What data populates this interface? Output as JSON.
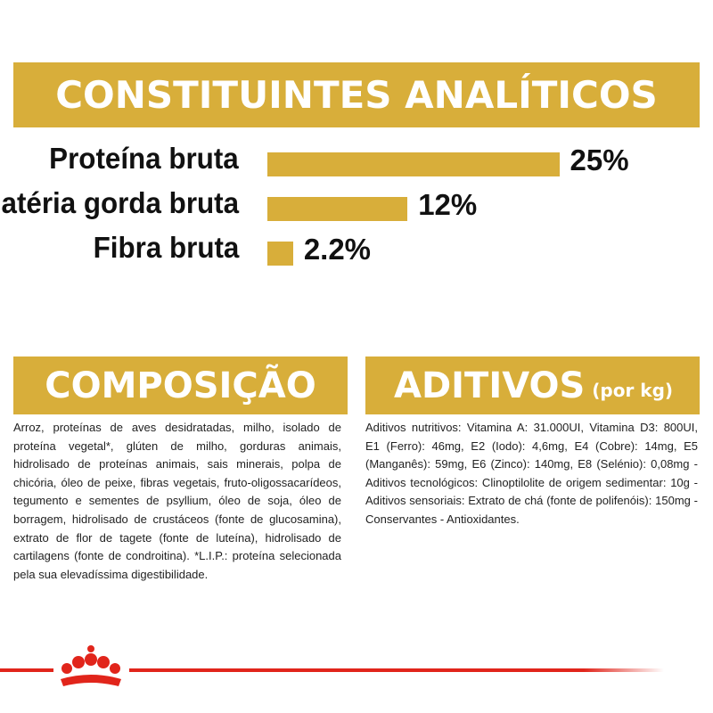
{
  "analytics": {
    "title": "CONSTITUINTES ANALÍTICOS",
    "items": [
      {
        "label": "Proteína bruta",
        "value": 25,
        "value_label": "25%"
      },
      {
        "label": "Matéria gorda bruta",
        "value": 12,
        "value_label": "12%"
      },
      {
        "label": "Fibra bruta",
        "value": 2.2,
        "value_label": "2.2%"
      }
    ]
  },
  "composition": {
    "title": "COMPOSIÇÃO",
    "text": "Arroz, proteínas de aves desidratadas, milho, isolado de proteína vegetal*, glúten de milho, gorduras animais, hidrolisado de proteínas animais, sais minerais, polpa de chicória, óleo de peixe, fibras vegetais, fruto-oligossacarídeos, tegumento e sementes de psyllium, óleo de soja, óleo de borragem, hidrolisado de crustáceos (fonte de glucosamina), extrato de flor de tagete (fonte de luteína), hidrolisado de cartilagens (fonte de condroitina). *L.I.P.: proteína selecionada pela sua elevadíssima digestibilidade."
  },
  "additives": {
    "title": "ADITIVOS",
    "subtitle": "(por kg)",
    "text": "Aditivos nutritivos: Vitamina A: 31.000UI, Vitamina D3: 800UI, E1 (Ferro): 46mg, E2 (Iodo): 4,6mg, E4 (Cobre): 14mg, E5 (Manganês): 59mg, E6 (Zinco): 140mg, E8 (Selénio): 0,08mg - Aditivos tecnológicos: Clinoptilolite de origem sedimentar: 10g - Aditivos sensoriais: Extrato de chá (fonte de polifenóis): 150mg - Conservantes - Antioxidantes."
  }
}
